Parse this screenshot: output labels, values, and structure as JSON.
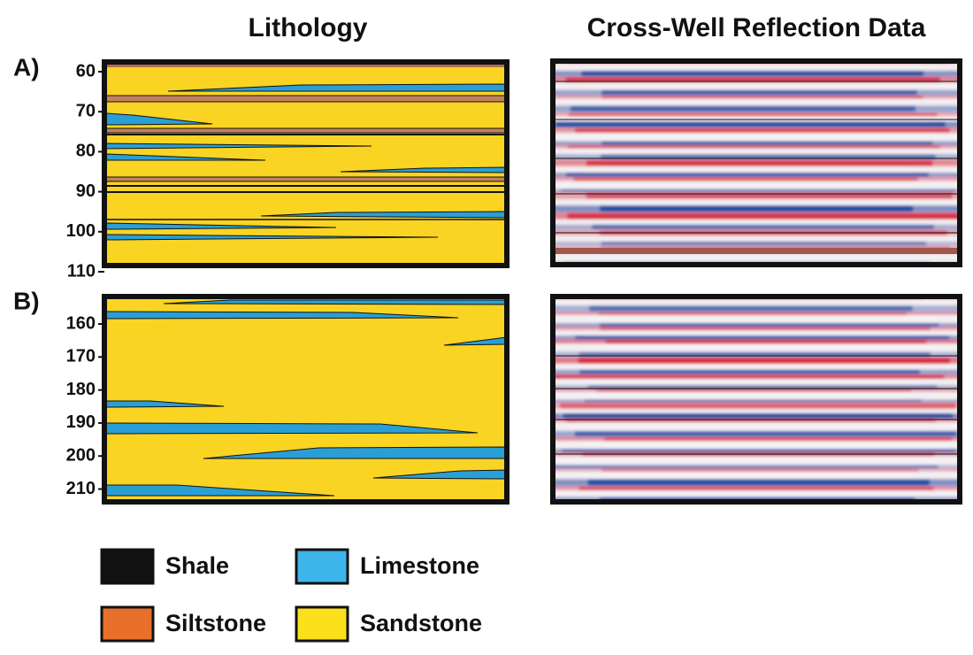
{
  "headers": {
    "lithology": "Lithology",
    "reflection": "Cross-Well Reflection Data"
  },
  "panels": [
    {
      "label": "A)",
      "depth_ticks": [
        "60",
        "70",
        "80",
        "90",
        "100",
        "110"
      ]
    },
    {
      "label": "B)",
      "depth_ticks": [
        "160",
        "170",
        "180",
        "190",
        "200",
        "210"
      ]
    }
  ],
  "legend": [
    {
      "label": "Shale",
      "color": "#111111"
    },
    {
      "label": "Limestone",
      "color": "#3db5ea"
    },
    {
      "label": "Siltstone",
      "color": "#e8702a"
    },
    {
      "label": "Sandstone",
      "color": "#fbe11b"
    }
  ]
}
